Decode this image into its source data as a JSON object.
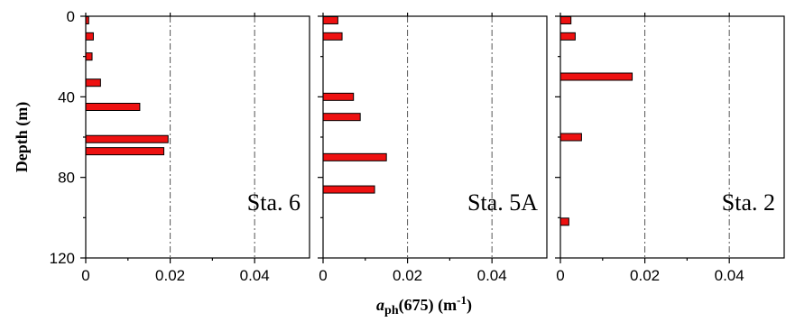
{
  "chart_data": [
    {
      "type": "bar",
      "orientation": "horizontal",
      "annotation": "Sta. 6",
      "depths": [
        2,
        10,
        20,
        33,
        45,
        61,
        67
      ],
      "values": [
        0.0007,
        0.0018,
        0.0015,
        0.0035,
        0.0128,
        0.0195,
        0.0185
      ],
      "xlim": [
        0,
        0.053
      ],
      "ylim": [
        0,
        120
      ],
      "xticks": [
        "0",
        "0.02",
        "0.04"
      ],
      "yticks": [
        "0",
        "40",
        "80",
        "120"
      ],
      "grid": "dash-dot vertical at x ticks"
    },
    {
      "type": "bar",
      "orientation": "horizontal",
      "annotation": "Sta. 5A",
      "depths": [
        2,
        10,
        40,
        50,
        70,
        86
      ],
      "values": [
        0.0035,
        0.0045,
        0.0072,
        0.0088,
        0.015,
        0.0122
      ],
      "xlim": [
        0,
        0.053
      ],
      "ylim": [
        0,
        120
      ],
      "xticks": [
        "0",
        "0.02",
        "0.04"
      ],
      "grid": "dash-dot vertical at x ticks"
    },
    {
      "type": "bar",
      "orientation": "horizontal",
      "annotation": "Sta. 2",
      "depths": [
        2,
        10,
        30,
        60,
        102
      ],
      "values": [
        0.0025,
        0.0035,
        0.017,
        0.005,
        0.002
      ],
      "xlim": [
        0,
        0.053
      ],
      "ylim": [
        0,
        120
      ],
      "xticks": [
        "0",
        "0.02",
        "0.04"
      ],
      "grid": "dash-dot vertical at x ticks"
    }
  ],
  "axes": {
    "ylabel": "Depth (m)",
    "xlabel_main": "a",
    "xlabel_sub": "ph",
    "xlabel_rest": "(675) (m",
    "xlabel_sup": "-1",
    "xlabel_close": ")"
  },
  "colors": {
    "bar": "#ee1111",
    "grid": "#555555"
  }
}
